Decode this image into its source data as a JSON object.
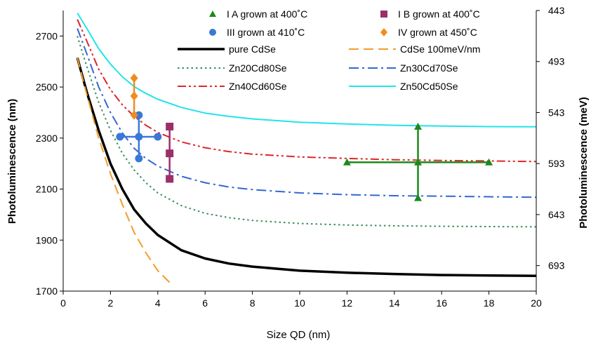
{
  "chart_data": {
    "type": "line",
    "xlabel": "Size QD (nm)",
    "ylabel": "Photoluminescence (nm)",
    "ylabel_right": "Photoluminescence (meV)",
    "xlim": [
      0,
      20
    ],
    "ylim": [
      1700,
      2800
    ],
    "x_ticks": [
      0,
      2,
      4,
      6,
      8,
      10,
      12,
      14,
      16,
      18,
      20
    ],
    "y_ticks": [
      1700,
      1900,
      2100,
      2300,
      2500,
      2700
    ],
    "y_right_ticks": [
      {
        "label": "443",
        "y": 2800
      },
      {
        "label": "493",
        "y": 2600
      },
      {
        "label": "543",
        "y": 2400
      },
      {
        "label": "593",
        "y": 2200
      },
      {
        "label": "643",
        "y": 2000
      },
      {
        "label": "693",
        "y": 1800
      }
    ],
    "grid": false,
    "legend_position": "top",
    "series": [
      {
        "name": "pure CdSe",
        "color": "#000000",
        "style": "solid-thick",
        "x": [
          0.6,
          1,
          1.5,
          2,
          2.5,
          3,
          3.5,
          4,
          5,
          6,
          7,
          8,
          10,
          12,
          14,
          16,
          18,
          20
        ],
        "y": [
          2615,
          2480,
          2330,
          2200,
          2100,
          2020,
          1965,
          1920,
          1860,
          1828,
          1808,
          1796,
          1780,
          1772,
          1767,
          1763,
          1761,
          1760
        ]
      },
      {
        "name": "CdSe 100meV/nm",
        "color": "#f39c2b",
        "style": "dashed",
        "x": [
          0.6,
          1,
          1.5,
          2,
          2.5,
          3,
          3.5,
          4,
          4.6
        ],
        "y": [
          2615,
          2470,
          2300,
          2160,
          2040,
          1930,
          1850,
          1780,
          1725
        ]
      },
      {
        "name": "Zn20Cd80Se",
        "color": "#3a8f5c",
        "style": "dotted",
        "x": [
          0.6,
          1,
          1.5,
          2,
          2.5,
          3,
          3.5,
          4,
          5,
          6,
          7,
          8,
          10,
          12,
          14,
          16,
          18,
          20
        ],
        "y": [
          2700,
          2580,
          2440,
          2330,
          2240,
          2175,
          2125,
          2085,
          2035,
          2005,
          1988,
          1977,
          1965,
          1959,
          1956,
          1954,
          1953,
          1952
        ]
      },
      {
        "name": "Zn30Cd70Se",
        "color": "#3467d4",
        "style": "dashdot",
        "x": [
          0.6,
          1,
          1.5,
          2,
          2.5,
          3,
          3.5,
          4,
          5,
          6,
          7,
          8,
          10,
          12,
          14,
          16,
          18,
          20
        ],
        "y": [
          2730,
          2630,
          2500,
          2400,
          2320,
          2260,
          2220,
          2190,
          2150,
          2125,
          2108,
          2098,
          2085,
          2078,
          2074,
          2072,
          2070,
          2068
        ]
      },
      {
        "name": "Zn40Cd60Se",
        "color": "#e0252b",
        "style": "dashdotdot",
        "x": [
          0.6,
          1,
          1.5,
          2,
          2.5,
          3,
          3.5,
          4,
          5,
          6,
          7,
          8,
          10,
          12,
          14,
          16,
          18,
          20
        ],
        "y": [
          2765,
          2680,
          2570,
          2490,
          2430,
          2385,
          2350,
          2322,
          2285,
          2262,
          2247,
          2237,
          2226,
          2220,
          2215,
          2212,
          2210,
          2208
        ]
      },
      {
        "name": "Zn50Cd50Se",
        "color": "#22e3ea",
        "style": "solid",
        "x": [
          0.6,
          1,
          1.5,
          2,
          2.5,
          3,
          3.5,
          4,
          5,
          6,
          7,
          8,
          10,
          12,
          14,
          16,
          18,
          20
        ],
        "y": [
          2790,
          2730,
          2650,
          2590,
          2540,
          2502,
          2475,
          2452,
          2420,
          2398,
          2385,
          2375,
          2362,
          2355,
          2350,
          2347,
          2345,
          2344
        ]
      }
    ],
    "points": [
      {
        "name": "I A grown at 400°C",
        "color": "#1a8a1a",
        "marker": "triangle",
        "x": [
          12,
          15,
          15,
          15,
          18
        ],
        "y": [
          2205,
          2345,
          2205,
          2065,
          2205
        ],
        "x_err": {
          "y": 2205,
          "from": 12,
          "to": 18
        },
        "y_err": {
          "x": 15,
          "from": 2065,
          "to": 2345
        }
      },
      {
        "name": "I B grown at 400°C",
        "color": "#9b2f6a",
        "marker": "square",
        "x": [
          4.5,
          4.5,
          4.5
        ],
        "y": [
          2345,
          2240,
          2140
        ],
        "y_err": {
          "x": 4.5,
          "from": 2140,
          "to": 2345
        }
      },
      {
        "name": "III grown at 410°C",
        "color": "#3a78d8",
        "marker": "circle",
        "x": [
          2.4,
          3.2,
          4.0,
          3.2,
          3.2
        ],
        "y": [
          2305,
          2305,
          2305,
          2390,
          2220
        ],
        "x_err": {
          "y": 2305,
          "from": 2.4,
          "to": 4.0
        },
        "y_err": {
          "x": 3.2,
          "from": 2220,
          "to": 2390
        }
      },
      {
        "name": "IV grown at 450°C",
        "color": "#f08c1e",
        "marker": "diamond",
        "x": [
          3.0,
          3.0,
          3.0
        ],
        "y": [
          2535,
          2465,
          2390
        ],
        "y_err": {
          "x": 3.0,
          "from": 2390,
          "to": 2535
        }
      }
    ],
    "legend": [
      {
        "label": "I A grown at 400˚C",
        "ref": "points.0"
      },
      {
        "label": "I B grown at 400˚C",
        "ref": "points.1"
      },
      {
        "label": "III grown at 410˚C",
        "ref": "points.2"
      },
      {
        "label": "IV grown at 450˚C",
        "ref": "points.3"
      },
      {
        "label": "pure CdSe",
        "ref": "series.0"
      },
      {
        "label": "CdSe 100meV/nm",
        "ref": "series.1"
      },
      {
        "label": "Zn20Cd80Se",
        "ref": "series.2"
      },
      {
        "label": "Zn30Cd70Se",
        "ref": "series.3"
      },
      {
        "label": "Zn40Cd60Se",
        "ref": "series.4"
      },
      {
        "label": "Zn50Cd50Se",
        "ref": "series.5"
      }
    ]
  }
}
